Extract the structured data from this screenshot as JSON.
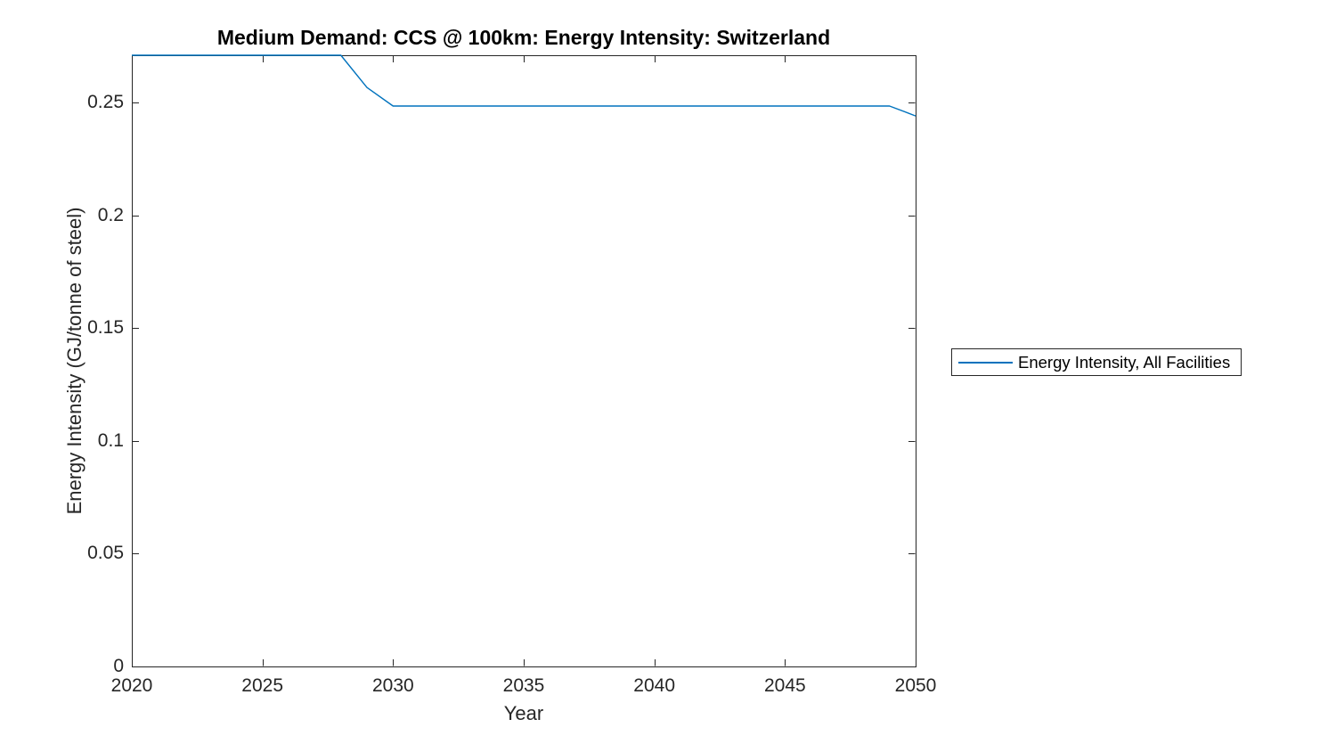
{
  "figure": {
    "background": "#ffffff"
  },
  "colors": {
    "axis": "#262626",
    "tick_label": "#262626",
    "title": "#000000",
    "line": "#0072BD",
    "legend_border": "#262626",
    "background": "#ffffff"
  },
  "legend": {
    "entries": [
      {
        "label": "Energy Intensity, All Facilities",
        "color": "#0072BD",
        "marker": "line"
      }
    ],
    "position": "right-outside",
    "border": true
  },
  "chart_data": {
    "type": "line",
    "title": "Medium Demand: CCS @ 100km: Energy Intensity: Switzerland",
    "xlabel": "Year",
    "ylabel": "Energy Intensity (GJ/tonne of steel)",
    "xlim": [
      2020,
      2050
    ],
    "ylim": [
      0,
      0.271
    ],
    "x_ticks": [
      2020,
      2025,
      2030,
      2035,
      2040,
      2045,
      2050
    ],
    "x_tick_labels": [
      "2020",
      "2025",
      "2030",
      "2035",
      "2040",
      "2045",
      "2050"
    ],
    "y_ticks": [
      0,
      0.05,
      0.1,
      0.15,
      0.2,
      0.25
    ],
    "y_tick_labels": [
      "0",
      "0.05",
      "0.1",
      "0.15",
      "0.2",
      "0.25"
    ],
    "grid": false,
    "box": true,
    "tick_direction": "in",
    "legend_position": "right-outside",
    "series": [
      {
        "name": "Energy Intensity, All Facilities",
        "color": "#0072BD",
        "x": [
          2020,
          2021,
          2022,
          2023,
          2024,
          2025,
          2026,
          2027,
          2028,
          2029,
          2030,
          2031,
          2032,
          2033,
          2034,
          2035,
          2036,
          2037,
          2038,
          2039,
          2040,
          2041,
          2042,
          2043,
          2044,
          2045,
          2046,
          2047,
          2048,
          2049,
          2050
        ],
        "values": [
          0.271,
          0.271,
          0.271,
          0.271,
          0.271,
          0.271,
          0.271,
          0.271,
          0.271,
          0.2567,
          0.2485,
          0.2485,
          0.2485,
          0.2485,
          0.2485,
          0.2485,
          0.2485,
          0.2485,
          0.2485,
          0.2485,
          0.2485,
          0.2485,
          0.2485,
          0.2485,
          0.2485,
          0.2485,
          0.2485,
          0.2485,
          0.2485,
          0.2485,
          0.2441
        ]
      }
    ]
  }
}
